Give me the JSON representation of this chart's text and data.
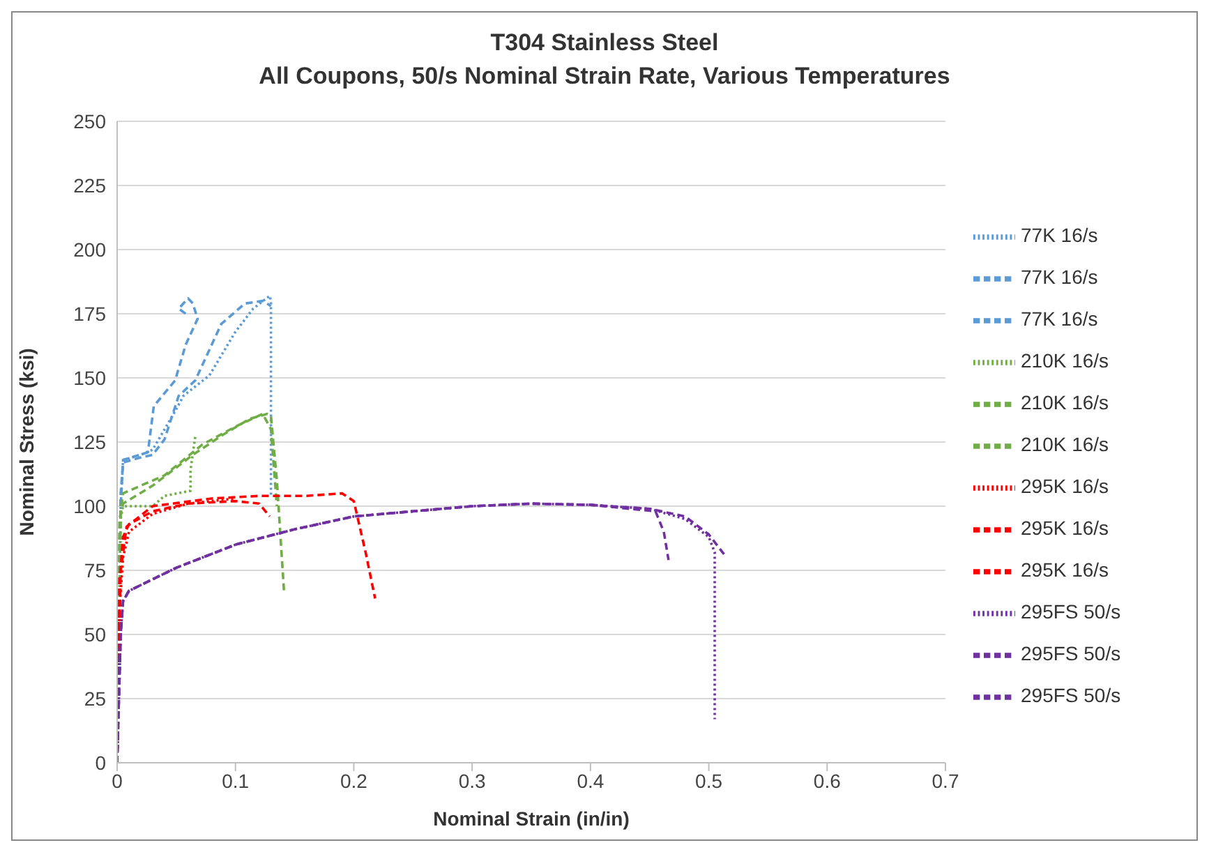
{
  "chart_data": {
    "type": "line",
    "title": "T304 Stainless Steel",
    "subtitle": "All Coupons, 50/s Nominal Strain Rate, Various Temperatures",
    "xlabel": "Nominal Strain (in/in)",
    "ylabel": "Nominal Stress (ksi)",
    "xlim": [
      0,
      0.7
    ],
    "xticks": [
      0,
      0.1,
      0.2,
      0.3,
      0.4,
      0.5,
      0.6,
      0.7
    ],
    "ylim": [
      0,
      250
    ],
    "yticks": [
      0,
      25,
      50,
      75,
      100,
      125,
      150,
      175,
      200,
      225,
      250
    ],
    "grid": "y",
    "legend": "right",
    "marker": "none",
    "series": [
      {
        "name": "77K 16/s",
        "color": "#5b9bd5",
        "line_style": "dotted",
        "x": [
          0,
          0.003,
          0.005,
          0.02,
          0.03,
          0.049,
          0.056,
          0.078,
          0.1,
          0.115,
          0.129,
          0.13,
          0.13
        ],
        "values": [
          0,
          100,
          118,
          120,
          122,
          137,
          143,
          151,
          168,
          177,
          182,
          180,
          104
        ]
      },
      {
        "name": "77K 16/s",
        "color": "#5b9bd5",
        "line_style": "dashed",
        "x": [
          0,
          0.003,
          0.005,
          0.02,
          0.03,
          0.04,
          0.052,
          0.066,
          0.076,
          0.088,
          0.108,
          0.123,
          0.13
        ],
        "values": [
          0,
          105,
          117,
          119,
          120,
          126,
          143,
          149,
          159,
          171,
          179,
          180,
          178
        ]
      },
      {
        "name": "77K 16/s",
        "color": "#5b9bd5",
        "line_style": "dashed",
        "x": [
          0,
          0.003,
          0.005,
          0.026,
          0.031,
          0.049,
          0.058,
          0.068,
          0.064,
          0.06,
          0.052,
          0.058
        ],
        "values": [
          0,
          100,
          118,
          121,
          139,
          149,
          163,
          173,
          179,
          181,
          177,
          175
        ]
      },
      {
        "name": "210K 16/s",
        "color": "#70ad47",
        "line_style": "dotted",
        "x": [
          0,
          0.003,
          0.005,
          0.03,
          0.04,
          0.062,
          0.062,
          0.066
        ],
        "values": [
          0,
          95,
          100,
          100,
          104,
          106,
          114,
          127
        ]
      },
      {
        "name": "210K 16/s",
        "color": "#70ad47",
        "line_style": "dashed",
        "x": [
          0,
          0.002,
          0.005,
          0.03,
          0.064,
          0.09,
          0.112,
          0.127,
          0.13,
          0.135,
          0.141
        ],
        "values": [
          0,
          95,
          101,
          108,
          120,
          128,
          134,
          136,
          135,
          110,
          67
        ]
      },
      {
        "name": "210K 16/s",
        "color": "#70ad47",
        "line_style": "dashed",
        "x": [
          0,
          0.003,
          0.005,
          0.04,
          0.072,
          0.1,
          0.123,
          0.13,
          0.135
        ],
        "values": [
          0,
          98,
          105,
          112,
          124,
          131,
          136,
          130,
          100
        ]
      },
      {
        "name": "295K 16/s",
        "color": "#ff0000",
        "line_style": "dotted",
        "x": [
          0,
          0.002,
          0.005,
          0.01,
          0.03,
          0.06,
          0.1
        ],
        "values": [
          0,
          60,
          80,
          90,
          97,
          101,
          103
        ]
      },
      {
        "name": "295K 16/s",
        "color": "#ff0000",
        "line_style": "dashed",
        "x": [
          0,
          0.002,
          0.005,
          0.01,
          0.03,
          0.06,
          0.1,
          0.12,
          0.129
        ],
        "values": [
          0,
          70,
          88,
          93,
          98,
          101,
          102,
          101,
          96
        ]
      },
      {
        "name": "295K 16/s",
        "color": "#ff0000",
        "line_style": "dashed",
        "x": [
          0,
          0.003,
          0.008,
          0.03,
          0.08,
          0.12,
          0.16,
          0.19,
          0.2,
          0.21,
          0.218
        ],
        "values": [
          0,
          75,
          92,
          100,
          103,
          104,
          104,
          105,
          102,
          82,
          64
        ]
      },
      {
        "name": "295FS 50/s",
        "color": "#7030a0",
        "line_style": "dotted",
        "x": [
          0,
          0.003,
          0.005,
          0.01,
          0.05,
          0.1,
          0.15,
          0.2,
          0.3,
          0.35,
          0.4,
          0.45,
          0.48,
          0.5,
          0.505,
          0.505
        ],
        "values": [
          0,
          50,
          63,
          67,
          76,
          85,
          91,
          96,
          100,
          101,
          100.5,
          99,
          95,
          88,
          82,
          17
        ]
      },
      {
        "name": "295FS 50/s",
        "color": "#7030a0",
        "line_style": "dashed",
        "x": [
          0,
          0.003,
          0.005,
          0.01,
          0.05,
          0.1,
          0.15,
          0.2,
          0.3,
          0.35,
          0.4,
          0.45,
          0.48,
          0.5,
          0.515
        ],
        "values": [
          0,
          50,
          63,
          67,
          76,
          85,
          91,
          96,
          100,
          101,
          100.5,
          99,
          96,
          89,
          80
        ]
      },
      {
        "name": "295FS 50/s",
        "color": "#7030a0",
        "line_style": "dashed",
        "x": [
          0,
          0.003,
          0.005,
          0.01,
          0.05,
          0.1,
          0.15,
          0.2,
          0.3,
          0.35,
          0.4,
          0.455,
          0.462,
          0.466
        ],
        "values": [
          0,
          50,
          63,
          67,
          76,
          85,
          91,
          96,
          100,
          101,
          100.5,
          98,
          90,
          79
        ]
      }
    ]
  }
}
